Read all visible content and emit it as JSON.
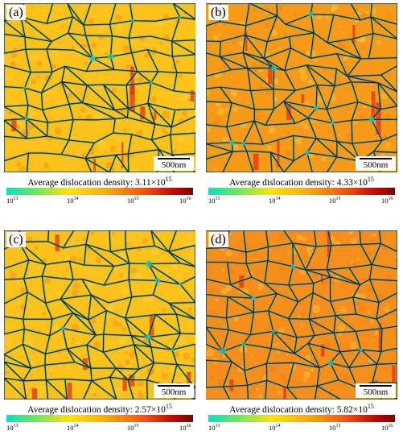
{
  "panels": [
    {
      "label": "(a)",
      "caption": "Average dislocation density: 3.11×10",
      "exp": "15",
      "scale": "500nm"
    },
    {
      "label": "(b)",
      "caption": "Average dislocation density: 4.33×10",
      "exp": "15",
      "scale": "500nm"
    },
    {
      "label": "(c)",
      "caption": "Average dislocation density: 2.57×10",
      "exp": "15",
      "scale": "500nm"
    },
    {
      "label": "(d)",
      "caption": "Average dislocation density: 5.82×10",
      "exp": "15",
      "scale": "500nm"
    }
  ],
  "colorbar": {
    "ticks": [
      {
        "base": "10",
        "exp": "13"
      },
      {
        "base": "10",
        "exp": "14"
      },
      {
        "base": "10",
        "exp": "15"
      },
      {
        "base": "10",
        "exp": "16"
      }
    ],
    "colors": [
      "#00e6c2",
      "#6fe85a",
      "#ffe400",
      "#ffb000",
      "#ff5a00",
      "#c80000"
    ]
  },
  "maps": {
    "base_colors": {
      "a": "#ffc21a",
      "b": "#f89a18",
      "c": "#ffc21a",
      "d": "#f78e1c"
    },
    "boundary_color": "#1d2a44",
    "low_density_color": "#18c9b8",
    "high_density_color": "#e22a10"
  }
}
